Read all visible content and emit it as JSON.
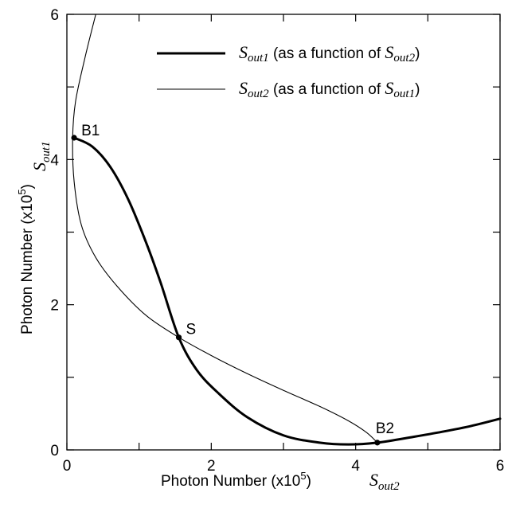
{
  "chart_data": {
    "type": "line",
    "xlabel": "Photon Number (x10",
    "xlabel_sup": "5",
    "xlabel_tail": ")",
    "x_symbol": "S",
    "x_symbol_sub": "out2",
    "ylabel": "Photon Number (x10",
    "ylabel_sup": "5",
    "ylabel_tail": ")",
    "y_symbol": "S",
    "y_symbol_sub": "out1",
    "xlim": [
      0,
      6
    ],
    "ylim": [
      0,
      6
    ],
    "x_ticks": [
      "0",
      "2",
      "4",
      "6"
    ],
    "y_ticks": [
      "0",
      "2",
      "4",
      "6"
    ],
    "grid": false,
    "legend_position": "top-right",
    "legend": [
      {
        "sym": "S",
        "sub": "out1",
        "text_mid": " (as a function of ",
        "sym2": "S",
        "sub2": "out2",
        "text_end": ")",
        "line_weight": "thick"
      },
      {
        "sym": "S",
        "sub": "out2",
        "text_mid": " (as a function of ",
        "sym2": "S",
        "sub2": "out1",
        "text_end": ")",
        "line_weight": "thin"
      }
    ],
    "series": [
      {
        "weight": "thick",
        "points": [
          [
            0.1,
            4.3
          ],
          [
            0.35,
            4.18
          ],
          [
            0.6,
            3.9
          ],
          [
            0.85,
            3.45
          ],
          [
            1.1,
            2.85
          ],
          [
            1.3,
            2.3
          ],
          [
            1.55,
            1.55
          ],
          [
            1.8,
            1.1
          ],
          [
            2.1,
            0.78
          ],
          [
            2.5,
            0.45
          ],
          [
            3.0,
            0.2
          ],
          [
            3.5,
            0.1
          ],
          [
            3.9,
            0.075
          ],
          [
            4.3,
            0.1
          ],
          [
            4.8,
            0.18
          ],
          [
            5.2,
            0.25
          ],
          [
            5.6,
            0.33
          ],
          [
            6.0,
            0.43
          ]
        ]
      },
      {
        "weight": "thin",
        "points": [
          [
            0.4,
            6.0
          ],
          [
            0.25,
            5.4
          ],
          [
            0.12,
            4.8
          ],
          [
            0.08,
            4.3
          ],
          [
            0.1,
            3.7
          ],
          [
            0.2,
            3.1
          ],
          [
            0.4,
            2.65
          ],
          [
            0.7,
            2.25
          ],
          [
            1.1,
            1.85
          ],
          [
            1.55,
            1.55
          ],
          [
            2.0,
            1.3
          ],
          [
            2.5,
            1.05
          ],
          [
            3.0,
            0.82
          ],
          [
            3.5,
            0.6
          ],
          [
            3.9,
            0.4
          ],
          [
            4.15,
            0.24
          ],
          [
            4.3,
            0.1
          ]
        ]
      }
    ],
    "points": [
      {
        "label": "B1",
        "x": 0.1,
        "y": 4.3
      },
      {
        "label": "S",
        "x": 1.55,
        "y": 1.55
      },
      {
        "label": "B2",
        "x": 4.3,
        "y": 0.1
      }
    ]
  }
}
